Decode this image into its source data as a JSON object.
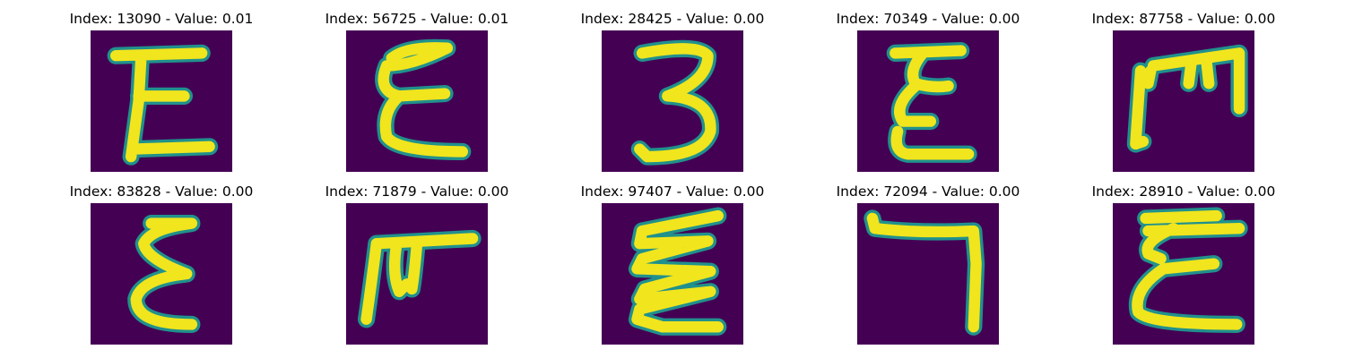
{
  "colors": {
    "background": "#440154",
    "stroke": "#F1E51D",
    "edge": "#21918C"
  },
  "samples": [
    {
      "title": "Index: 13090 - Value: 0.01",
      "glyph": "E-shape"
    },
    {
      "title": "Index: 56725 - Value: 0.01",
      "glyph": "E-shape"
    },
    {
      "title": "Index: 28425 - Value: 0.00",
      "glyph": "3-shape"
    },
    {
      "title": "Index: 70349 - Value: 0.00",
      "glyph": "E-shape"
    },
    {
      "title": "Index: 87758 - Value: 0.00",
      "glyph": "m-shape"
    },
    {
      "title": "Index: 83828 - Value: 0.00",
      "glyph": "E-shape"
    },
    {
      "title": "Index: 71879 - Value: 0.00",
      "glyph": "F-shape"
    },
    {
      "title": "Index: 97407 - Value: 0.00",
      "glyph": "zigzag-shape"
    },
    {
      "title": "Index: 72094 - Value: 0.00",
      "glyph": "7-shape"
    },
    {
      "title": "Index: 28910 - Value: 0.00",
      "glyph": "E-shape"
    }
  ]
}
